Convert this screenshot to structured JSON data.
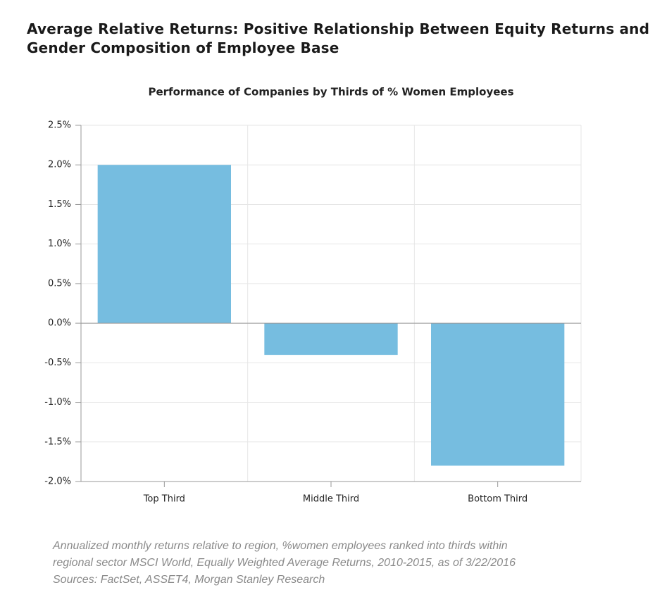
{
  "header": {
    "title": [
      "Average Relative Returns: Positive Relationship Between Equity Returns and",
      "Gender Composition of Employee Base"
    ]
  },
  "chart_data": {
    "type": "bar",
    "title": "Performance of Companies by Thirds of % Women Employees",
    "categories": [
      "Top Third",
      "Middle Third",
      "Bottom Third"
    ],
    "values": [
      2.0,
      -0.4,
      -1.8
    ],
    "color": "#76bde0",
    "ylim": [
      -2,
      2.5
    ],
    "yticks": [
      {
        "value": -2,
        "label": "-2.0%"
      },
      {
        "value": -1.5,
        "label": "-1.5%"
      },
      {
        "value": -1,
        "label": "-1.0%"
      },
      {
        "value": -0.5,
        "label": "-0.5%"
      },
      {
        "value": 0,
        "label": "0.0%"
      },
      {
        "value": 0.5,
        "label": "0.5%"
      },
      {
        "value": 1,
        "label": "1.0%"
      },
      {
        "value": 1.5,
        "label": "1.5%"
      },
      {
        "value": 2,
        "label": "2.0%"
      },
      {
        "value": 2.5,
        "label": "2.5%"
      }
    ],
    "grid": true
  },
  "footnotes": [
    "Annualized monthly returns relative to region, %women employees ranked into thirds within",
    "regional sector MSCI World, Equally Weighted Average Returns, 2010-2015, as of 3/22/2016",
    "Sources: FactSet, ASSET4, Morgan Stanley Research"
  ]
}
